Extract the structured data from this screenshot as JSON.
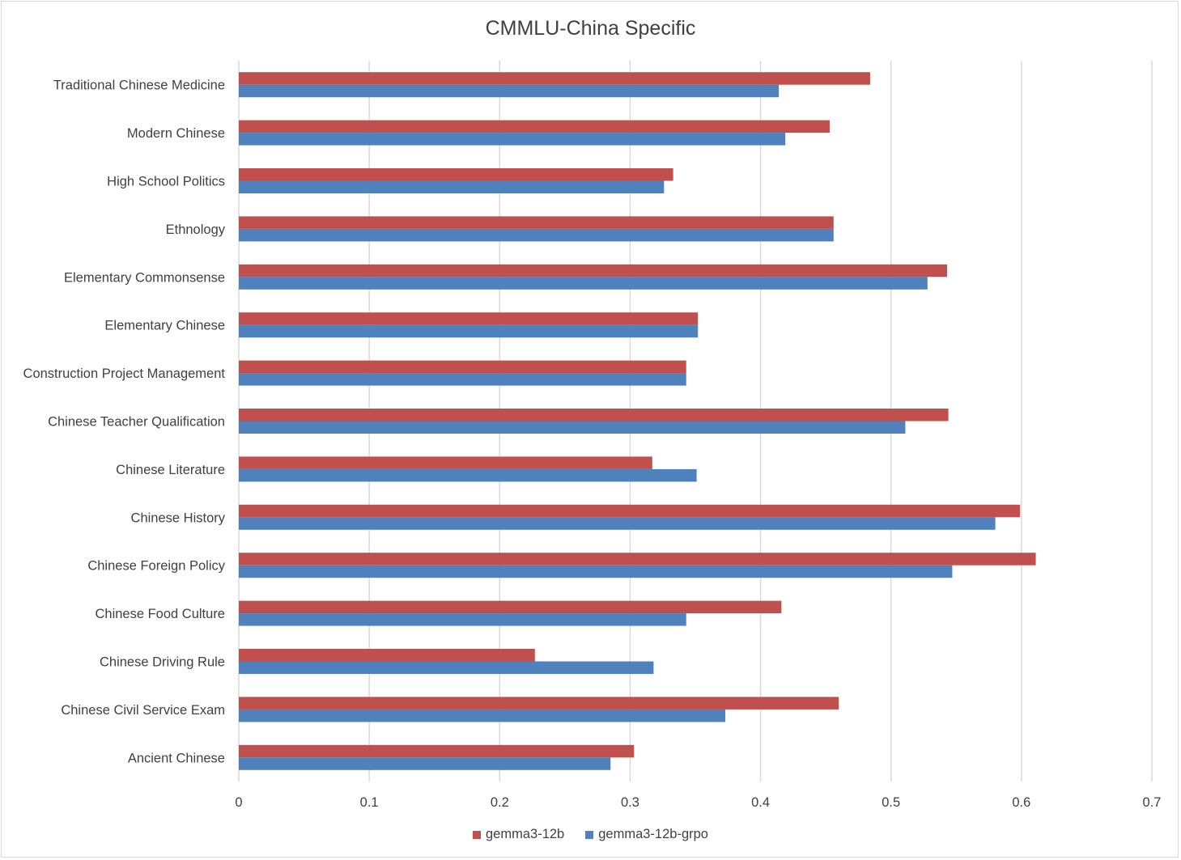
{
  "chart_data": {
    "type": "bar",
    "orientation": "horizontal",
    "title": "CMMLU-China Specific",
    "xlabel": "",
    "ylabel": "",
    "xlim": [
      0,
      0.7
    ],
    "x_ticks": [
      "0",
      "0.1",
      "0.2",
      "0.3",
      "0.4",
      "0.5",
      "0.6",
      "0.7"
    ],
    "grid": true,
    "legend_position": "bottom",
    "categories": [
      "Traditional Chinese Medicine",
      "Modern Chinese",
      "High School Politics",
      "Ethnology",
      "Elementary Commonsense",
      "Elementary Chinese",
      "Construction Project Management",
      "Chinese Teacher Qualification",
      "Chinese Literature",
      "Chinese History",
      "Chinese Foreign Policy",
      "Chinese Food Culture",
      "Chinese Driving Rule",
      "Chinese Civil Service Exam",
      "Ancient Chinese"
    ],
    "series": [
      {
        "name": "gemma3-12b",
        "color": "#c0504d",
        "values": [
          0.484,
          0.453,
          0.333,
          0.456,
          0.543,
          0.352,
          0.343,
          0.544,
          0.317,
          0.599,
          0.611,
          0.416,
          0.227,
          0.46,
          0.303
        ]
      },
      {
        "name": "gemma3-12b-grpo",
        "color": "#4f81bd",
        "values": [
          0.414,
          0.419,
          0.326,
          0.456,
          0.528,
          0.352,
          0.343,
          0.511,
          0.351,
          0.58,
          0.547,
          0.343,
          0.318,
          0.373,
          0.285
        ]
      }
    ]
  }
}
